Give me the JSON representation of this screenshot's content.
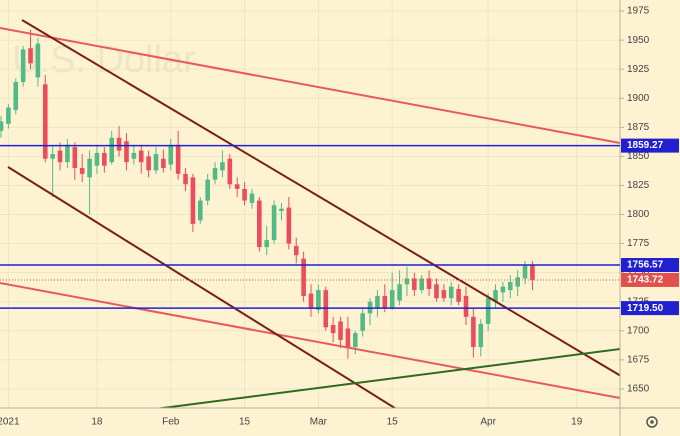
{
  "chart_data": {
    "type": "candlestick",
    "watermark": "U.S. Dollar",
    "categories": [
      null,
      "2021",
      null,
      null,
      null,
      null,
      null,
      null,
      null,
      null,
      null,
      null,
      null,
      "18",
      null,
      null,
      null,
      null,
      null,
      null,
      null,
      null,
      null,
      "Feb",
      null,
      null,
      null,
      null,
      null,
      null,
      null,
      null,
      null,
      "15",
      null,
      null,
      null,
      null,
      null,
      null,
      null,
      null,
      null,
      "Mar",
      null,
      null,
      null,
      null,
      null,
      null,
      null,
      null,
      null,
      "15",
      null,
      null,
      null,
      null,
      null,
      null,
      null,
      null,
      null,
      null,
      null,
      null,
      "Apr",
      null,
      null,
      null,
      null,
      null,
      null,
      null,
      null,
      null,
      null,
      null,
      "19",
      null,
      null,
      null,
      null,
      null
    ],
    "open": [
      1872,
      1878,
      1890,
      1914,
      1943,
      1918,
      1912,
      1848,
      1855,
      1845,
      1858,
      1840,
      1832,
      1842,
      1853,
      1845,
      1866,
      1863,
      1848,
      1855,
      1850,
      1838,
      1848,
      1843,
      1860,
      1835,
      1832,
      1795,
      1812,
      1830,
      1838,
      1848,
      1826,
      1822,
      1810,
      1812,
      1772,
      1778,
      1803,
      1806,
      1773,
      1762,
      1732,
      1718,
      1735,
      1705,
      1708,
      1702,
      1686,
      1700,
      1715,
      1720,
      1730,
      1720,
      1726,
      1740,
      1745,
      1735,
      1745,
      1740,
      1735,
      1728,
      1736,
      1730,
      1712,
      1686,
      1706,
      1725,
      1733,
      1735,
      1738,
      1745,
      1756,
      null,
      null,
      null,
      null,
      null,
      null,
      null,
      null,
      null,
      null,
      null
    ],
    "high": [
      1885,
      1895,
      1917,
      1945,
      1959,
      1952,
      1920,
      1860,
      1862,
      1865,
      1862,
      1852,
      1855,
      1860,
      1858,
      1872,
      1876,
      1870,
      1860,
      1860,
      1855,
      1858,
      1856,
      1865,
      1872,
      1840,
      1835,
      1815,
      1835,
      1845,
      1855,
      1852,
      1832,
      1828,
      1822,
      1815,
      1790,
      1812,
      1810,
      1815,
      1780,
      1768,
      1740,
      1740,
      1738,
      1712,
      1712,
      1712,
      1700,
      1720,
      1728,
      1735,
      1740,
      1750,
      1752,
      1755,
      1750,
      1748,
      1752,
      1745,
      1740,
      1742,
      1740,
      1738,
      1720,
      1710,
      1732,
      1740,
      1742,
      1748,
      1752,
      1760,
      1760,
      null,
      null,
      null,
      null,
      null,
      null,
      null,
      null,
      null,
      null,
      null
    ],
    "low": [
      1866,
      1874,
      1886,
      1910,
      1925,
      1910,
      1845,
      1815,
      1838,
      1840,
      1830,
      1828,
      1800,
      1835,
      1836,
      1843,
      1850,
      1838,
      1843,
      1835,
      1832,
      1835,
      1836,
      1838,
      1830,
      1820,
      1785,
      1792,
      1808,
      1826,
      1832,
      1822,
      1815,
      1808,
      1805,
      1768,
      1765,
      1775,
      1795,
      1770,
      1758,
      1725,
      1712,
      1715,
      1700,
      1690,
      1685,
      1676,
      1680,
      1695,
      1705,
      1712,
      1716,
      1718,
      1722,
      1730,
      1730,
      1732,
      1730,
      1725,
      1725,
      1722,
      1722,
      1705,
      1677,
      1678,
      1700,
      1720,
      1725,
      1728,
      1730,
      1740,
      1735,
      null,
      null,
      null,
      null,
      null,
      null,
      null,
      null,
      null,
      null,
      null
    ],
    "close": [
      1880,
      1892,
      1914,
      1942,
      1930,
      1947,
      1848,
      1852,
      1845,
      1860,
      1840,
      1835,
      1848,
      1853,
      1842,
      1866,
      1855,
      1845,
      1853,
      1845,
      1838,
      1852,
      1840,
      1860,
      1835,
      1826,
      1792,
      1812,
      1830,
      1840,
      1845,
      1826,
      1822,
      1812,
      1818,
      1772,
      1778,
      1808,
      1805,
      1775,
      1765,
      1730,
      1720,
      1735,
      1703,
      1698,
      1692,
      1686,
      1698,
      1715,
      1725,
      1730,
      1720,
      1735,
      1740,
      1745,
      1735,
      1745,
      1736,
      1728,
      1728,
      1738,
      1725,
      1712,
      1686,
      1706,
      1728,
      1735,
      1738,
      1742,
      1746,
      1756,
      1743.72,
      null,
      null,
      null,
      null,
      null,
      null,
      null,
      null,
      null,
      null,
      null
    ],
    "up_color": "#53b987",
    "down_color": "#eb4d5c",
    "ylim": [
      1633.6,
      1984.5
    ],
    "yticks": [
      1650,
      1675,
      1700,
      1725,
      1750,
      1775,
      1800,
      1825,
      1850,
      1875,
      1900,
      1925,
      1950,
      1975
    ],
    "grid": true,
    "levels": [
      1859.27,
      1756.57,
      {
        "value": 1719.5,
        "label": "1719.50"
      }
    ],
    "level_color": "#2020d0",
    "last_price_color": "#e0504c"
  }
}
